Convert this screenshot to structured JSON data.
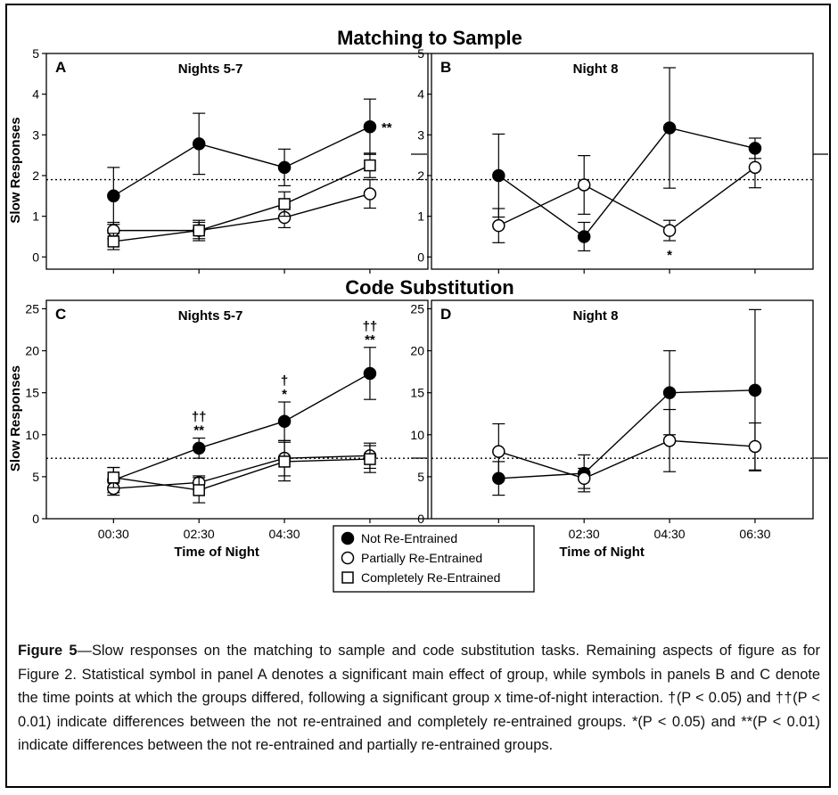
{
  "chart_data": [
    {
      "panel": "A",
      "type": "line",
      "group_title": "Matching to Sample",
      "title": "Nights 5-7",
      "ylabel": "Slow Responses",
      "xlabel": "",
      "categories": [
        "00:30",
        "02:30",
        "04:30",
        "06:30"
      ],
      "ylim": [
        -0.3,
        5
      ],
      "yticks": [
        0,
        1,
        2,
        3,
        4,
        5
      ],
      "reference_line": 1.9,
      "grid": false,
      "series": [
        {
          "name": "Not Re-Entrained",
          "values": [
            1.5,
            2.78,
            2.2,
            3.2
          ],
          "errors": [
            0.7,
            0.75,
            0.45,
            0.68
          ]
        },
        {
          "name": "Partially Re-Entrained",
          "values": [
            0.65,
            0.65,
            0.97,
            1.55
          ],
          "errors": [
            0.2,
            0.2,
            0.25,
            0.35
          ]
        },
        {
          "name": "Completely Re-Entrained",
          "values": [
            0.38,
            0.65,
            1.3,
            2.25
          ],
          "errors": [
            0.2,
            0.25,
            0.3,
            0.3
          ]
        }
      ],
      "annotations": [
        {
          "category": "06:30",
          "text": "**",
          "position": "right"
        }
      ]
    },
    {
      "panel": "B",
      "type": "line",
      "title": "Night 8",
      "ylabel": "",
      "xlabel": "",
      "categories": [
        "00:30",
        "02:30",
        "04:30",
        "06:30"
      ],
      "ylim": [
        -0.3,
        5
      ],
      "yticks": [
        0,
        1,
        2,
        3,
        4,
        5
      ],
      "reference_line": 1.9,
      "grid": false,
      "series": [
        {
          "name": "Not Re-Entrained",
          "values": [
            2.0,
            0.5,
            3.17,
            2.67
          ],
          "errors": [
            1.02,
            0.35,
            1.48,
            0.25
          ]
        },
        {
          "name": "Partially Re-Entrained",
          "values": [
            0.77,
            1.77,
            0.65,
            2.2
          ],
          "errors": [
            0.42,
            0.72,
            0.25,
            0.5
          ]
        }
      ],
      "annotations": [
        {
          "category": "04:30",
          "text": "*",
          "position": "below"
        }
      ]
    },
    {
      "panel": "C",
      "type": "line",
      "group_title": "Code Substitution",
      "title": "Nights 5-7",
      "ylabel": "Slow Responses",
      "xlabel": "Time of Night",
      "categories": [
        "00:30",
        "02:30",
        "04:30",
        "06:30"
      ],
      "ylim": [
        0,
        26
      ],
      "yticks": [
        0,
        5,
        10,
        15,
        20,
        25
      ],
      "reference_line": 7.2,
      "grid": false,
      "series": [
        {
          "name": "Not Re-Entrained",
          "values": [
            4.6,
            8.4,
            11.6,
            17.3
          ],
          "errors": [
            1.5,
            1.2,
            2.3,
            3.1
          ]
        },
        {
          "name": "Partially Re-Entrained",
          "values": [
            3.6,
            4.3,
            7.2,
            7.5
          ],
          "errors": [
            0.8,
            0.8,
            2.1,
            1.5
          ]
        },
        {
          "name": "Completely Re-Entrained",
          "values": [
            4.9,
            3.4,
            6.8,
            7.1
          ],
          "errors": [
            1.2,
            1.5,
            2.3,
            1.6
          ]
        }
      ],
      "annotations": [
        {
          "category": "02:30",
          "text": "**",
          "row": 1
        },
        {
          "category": "02:30",
          "text": "††",
          "row": 2
        },
        {
          "category": "04:30",
          "text": "*",
          "row": 1
        },
        {
          "category": "04:30",
          "text": "†",
          "row": 2
        },
        {
          "category": "06:30",
          "text": "**",
          "row": 1
        },
        {
          "category": "06:30",
          "text": "††",
          "row": 2
        }
      ]
    },
    {
      "panel": "D",
      "type": "line",
      "title": "Night 8",
      "ylabel": "",
      "xlabel": "Time of Night",
      "categories": [
        "00:30",
        "02:30",
        "04:30",
        "06:30"
      ],
      "ylim": [
        0,
        26
      ],
      "yticks": [
        0,
        5,
        10,
        15,
        20,
        25
      ],
      "reference_line": 7.2,
      "grid": false,
      "series": [
        {
          "name": "Not Re-Entrained",
          "values": [
            4.8,
            5.4,
            15.0,
            15.3
          ],
          "errors": [
            2.0,
            2.2,
            5.0,
            9.6
          ]
        },
        {
          "name": "Partially Re-Entrained",
          "values": [
            8.0,
            4.8,
            9.3,
            8.6
          ],
          "errors": [
            3.3,
            1.2,
            3.7,
            2.8
          ]
        }
      ],
      "annotations": []
    }
  ],
  "legend": {
    "placement": "bottom-center",
    "entries": [
      "Not Re-Entrained",
      "Partially Re-Entrained",
      "Completely Re-Entrained"
    ]
  },
  "caption": {
    "label": "Figure 5",
    "text": "—Slow responses on the matching to sample and code substitution tasks. Remaining aspects of figure as for Figure 2. Statistical symbol in panel A denotes a significant main effect of group, while symbols in panels B and C denote the time points at which the groups differed, following a significant group x time-of-night interaction. †(P < 0.05) and ††(P < 0.01) indicate differences between the not re-entrained and completely re-entrained groups. *(P < 0.05) and **(P < 0.01) indicate differences between the not re-entrained and partially re-entrained groups."
  }
}
